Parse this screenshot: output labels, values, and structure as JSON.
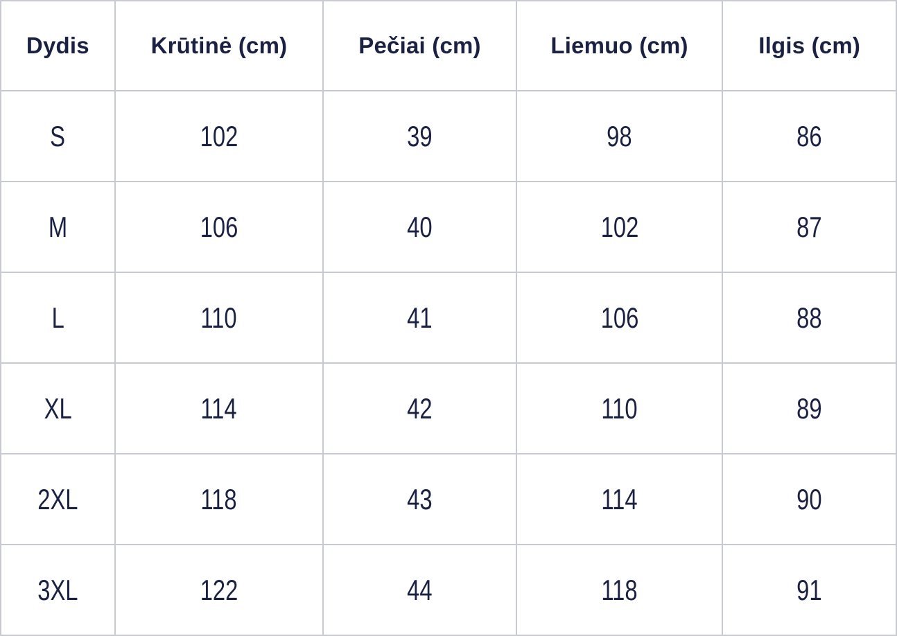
{
  "chart_data": {
    "type": "table",
    "columns": [
      "Dydis",
      "Krūtinė (cm)",
      "Pečiai (cm)",
      "Liemuo (cm)",
      "Ilgis (cm)"
    ],
    "rows": [
      [
        "S",
        "102",
        "39",
        "98",
        "86"
      ],
      [
        "M",
        "106",
        "40",
        "102",
        "87"
      ],
      [
        "L",
        "110",
        "41",
        "106",
        "88"
      ],
      [
        "XL",
        "114",
        "42",
        "110",
        "89"
      ],
      [
        "2XL",
        "118",
        "43",
        "114",
        "90"
      ],
      [
        "3XL",
        "122",
        "44",
        "118",
        "91"
      ]
    ]
  },
  "colors": {
    "text": "#1b2142",
    "border": "#c8cad2",
    "background": "#ffffff"
  }
}
